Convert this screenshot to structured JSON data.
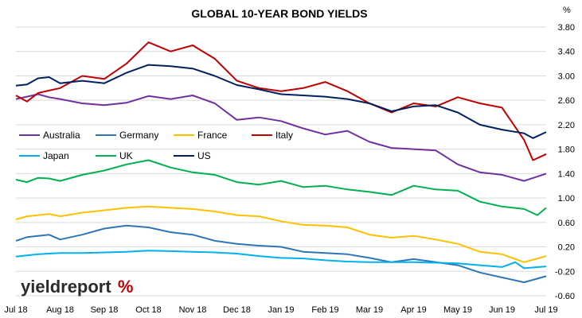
{
  "chart_data": {
    "type": "line",
    "title": "GLOBAL 10-YEAR BOND YIELDS",
    "unit": "%",
    "ylim": [
      -0.6,
      3.8
    ],
    "yticks": [
      "3.80",
      "3.40",
      "3.00",
      "2.60",
      "2.20",
      "1.80",
      "1.40",
      "1.00",
      "0.60",
      "0.20",
      "-0.20",
      "-0.60"
    ],
    "ytick_values": [
      3.8,
      3.4,
      3.0,
      2.6,
      2.2,
      1.8,
      1.4,
      1.0,
      0.6,
      0.2,
      -0.2,
      -0.6
    ],
    "x_months": [
      "Jul 18",
      "Aug 18",
      "Sep 18",
      "Oct 18",
      "Nov 18",
      "Dec 18",
      "Jan 19",
      "Feb 19",
      "Mar 19",
      "Apr 19",
      "May 19",
      "Jun 19",
      "Jul 19"
    ],
    "grid": true,
    "legend_position": "left, inside plot",
    "series": [
      {
        "name": "Australia",
        "color": "#7030a0",
        "x": [
          0,
          0.25,
          0.5,
          0.75,
          1,
          1.5,
          2,
          2.5,
          3,
          3.5,
          4,
          4.5,
          5,
          5.5,
          6,
          6.5,
          7,
          7.5,
          8,
          8.5,
          9,
          9.5,
          10,
          10.5,
          11,
          11.5,
          12
        ],
        "values": [
          2.62,
          2.66,
          2.7,
          2.65,
          2.62,
          2.55,
          2.52,
          2.56,
          2.67,
          2.62,
          2.68,
          2.55,
          2.28,
          2.32,
          2.26,
          2.14,
          2.04,
          2.1,
          1.92,
          1.82,
          1.8,
          1.78,
          1.55,
          1.42,
          1.38,
          1.28,
          1.4
        ]
      },
      {
        "name": "Germany",
        "color": "#2e75b6",
        "x": [
          0,
          0.25,
          0.5,
          0.75,
          1,
          1.5,
          2,
          2.5,
          3,
          3.5,
          4,
          4.5,
          5,
          5.5,
          6,
          6.5,
          7,
          7.5,
          8,
          8.5,
          9,
          9.5,
          10,
          10.5,
          11,
          11.5,
          12
        ],
        "values": [
          0.3,
          0.36,
          0.38,
          0.4,
          0.32,
          0.4,
          0.5,
          0.55,
          0.52,
          0.44,
          0.4,
          0.3,
          0.25,
          0.22,
          0.2,
          0.12,
          0.1,
          0.08,
          0.02,
          -0.05,
          0.0,
          -0.05,
          -0.1,
          -0.22,
          -0.3,
          -0.38,
          -0.28
        ]
      },
      {
        "name": "France",
        "color": "#ffc000",
        "x": [
          0,
          0.25,
          0.5,
          0.75,
          1,
          1.5,
          2,
          2.5,
          3,
          3.5,
          4,
          4.5,
          5,
          5.5,
          6,
          6.5,
          7,
          7.5,
          8,
          8.5,
          9,
          9.5,
          10,
          10.5,
          11,
          11.5,
          12
        ],
        "values": [
          0.65,
          0.7,
          0.72,
          0.74,
          0.7,
          0.76,
          0.8,
          0.84,
          0.86,
          0.84,
          0.82,
          0.78,
          0.72,
          0.7,
          0.62,
          0.56,
          0.55,
          0.52,
          0.4,
          0.35,
          0.38,
          0.32,
          0.25,
          0.12,
          0.08,
          -0.05,
          0.05
        ]
      },
      {
        "name": "Italy",
        "color": "#c00000",
        "x": [
          0,
          0.25,
          0.5,
          0.75,
          1,
          1.5,
          2,
          2.5,
          3,
          3.5,
          4,
          4.5,
          5,
          5.5,
          6,
          6.5,
          7,
          7.5,
          8,
          8.5,
          9,
          9.5,
          10,
          10.5,
          11,
          11.5,
          11.7,
          12
        ],
        "values": [
          2.68,
          2.58,
          2.72,
          2.76,
          2.8,
          3.0,
          2.95,
          3.2,
          3.55,
          3.4,
          3.5,
          3.28,
          2.92,
          2.8,
          2.75,
          2.8,
          2.9,
          2.75,
          2.55,
          2.4,
          2.55,
          2.5,
          2.65,
          2.55,
          2.48,
          1.95,
          1.62,
          1.72
        ]
      },
      {
        "name": "Japan",
        "color": "#00b0f0",
        "x": [
          0,
          0.5,
          1,
          1.5,
          2,
          2.5,
          3,
          3.5,
          4,
          4.5,
          5,
          5.5,
          6,
          6.5,
          7,
          7.5,
          8,
          8.5,
          9,
          9.5,
          10,
          10.5,
          11,
          11.3,
          11.5,
          12
        ],
        "values": [
          0.04,
          0.08,
          0.1,
          0.1,
          0.11,
          0.12,
          0.14,
          0.13,
          0.12,
          0.11,
          0.09,
          0.05,
          0.02,
          0.01,
          -0.02,
          -0.04,
          -0.05,
          -0.05,
          -0.05,
          -0.06,
          -0.07,
          -0.1,
          -0.13,
          -0.05,
          -0.15,
          -0.12
        ]
      },
      {
        "name": "UK",
        "color": "#00b050",
        "x": [
          0,
          0.25,
          0.5,
          0.75,
          1,
          1.5,
          2,
          2.5,
          3,
          3.5,
          4,
          4.5,
          5,
          5.5,
          6,
          6.5,
          7,
          7.5,
          8,
          8.5,
          9,
          9.5,
          10,
          10.5,
          11,
          11.5,
          11.8,
          12
        ],
        "values": [
          1.3,
          1.26,
          1.33,
          1.32,
          1.28,
          1.38,
          1.45,
          1.55,
          1.62,
          1.5,
          1.42,
          1.38,
          1.26,
          1.22,
          1.28,
          1.18,
          1.2,
          1.14,
          1.1,
          1.05,
          1.2,
          1.14,
          1.12,
          0.94,
          0.86,
          0.82,
          0.72,
          0.84
        ]
      },
      {
        "name": "US",
        "color": "#002060",
        "x": [
          0,
          0.25,
          0.5,
          0.75,
          1,
          1.5,
          2,
          2.5,
          3,
          3.5,
          4,
          4.5,
          5,
          5.5,
          6,
          6.5,
          7,
          7.5,
          8,
          8.5,
          9,
          9.5,
          10,
          10.5,
          11,
          11.5,
          11.7,
          12
        ],
        "values": [
          2.84,
          2.86,
          2.96,
          2.98,
          2.88,
          2.92,
          2.88,
          3.05,
          3.18,
          3.16,
          3.12,
          3.0,
          2.85,
          2.78,
          2.7,
          2.68,
          2.66,
          2.62,
          2.55,
          2.42,
          2.5,
          2.52,
          2.4,
          2.2,
          2.12,
          2.06,
          1.98,
          2.08
        ]
      }
    ]
  },
  "logo": {
    "text_main": "yieldreport",
    "text_mark": "%"
  }
}
